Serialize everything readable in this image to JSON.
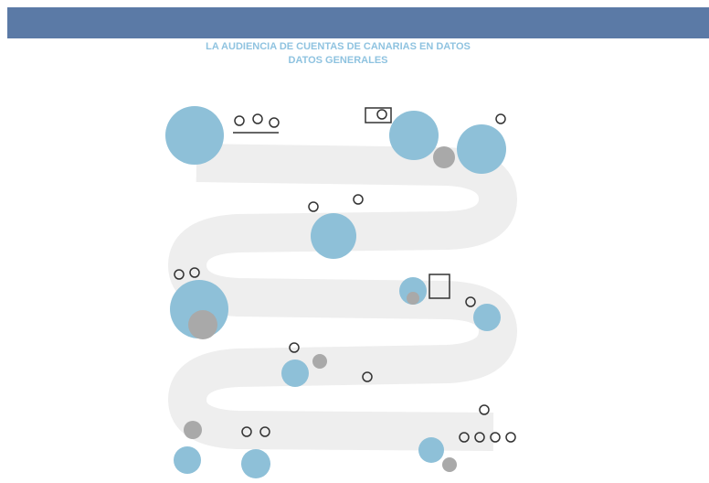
{
  "header": {
    "title": "LA AUDIENCIA DE CUENTAS DE CANARIAS EN DATOS",
    "subtitle": "DATOS GENERALES"
  }
}
